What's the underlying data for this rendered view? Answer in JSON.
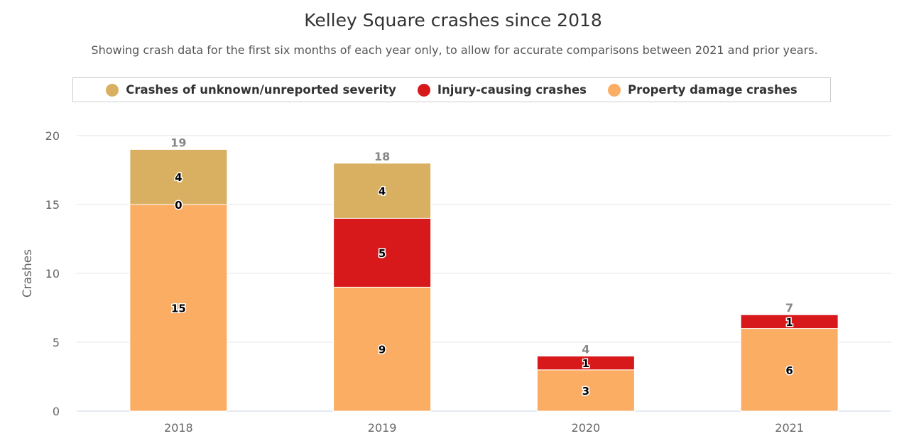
{
  "chart_data": {
    "type": "bar",
    "stacked": true,
    "title": "Kelley Square crashes since 2018",
    "subtitle": "Showing crash data for the first six months of each year only, to allow for accurate comparisons between 2021 and prior years.",
    "xlabel": "",
    "ylabel": "Crashes",
    "ylim": [
      0,
      20
    ],
    "yticks": [
      "0",
      "5",
      "10",
      "15",
      "20"
    ],
    "categories": [
      "2018",
      "2019",
      "2020",
      "2021"
    ],
    "totals": [
      "19",
      "18",
      "4",
      "7"
    ],
    "grid": true,
    "legend_position": "top",
    "series": [
      {
        "name": "Crashes of unknown/unreported severity",
        "color": "#d9b062",
        "values": [
          4,
          4,
          null,
          null
        ]
      },
      {
        "name": "Injury-causing crashes",
        "color": "#d7191c",
        "values": [
          0,
          5,
          1,
          1
        ]
      },
      {
        "name": "Property damage crashes",
        "color": "#fbad63",
        "values": [
          15,
          9,
          3,
          6
        ]
      }
    ]
  }
}
